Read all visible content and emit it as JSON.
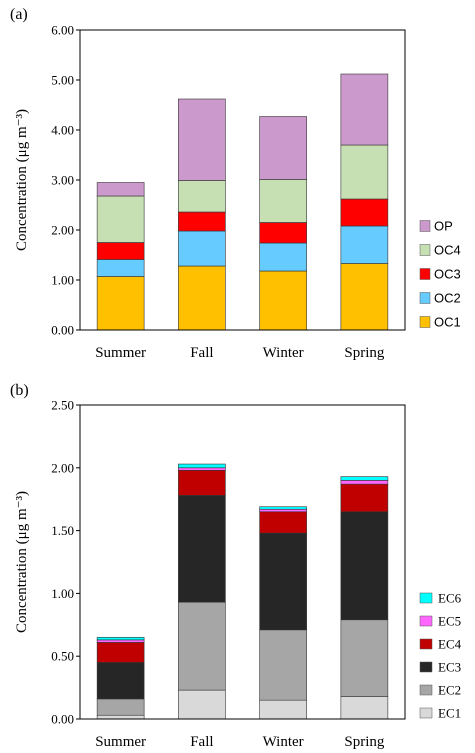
{
  "chart_data": [
    {
      "panel_label": "(a)",
      "type": "bar",
      "stacked": true,
      "ylabel": "Concentration (μg m⁻³)",
      "ylim": [
        0,
        6
      ],
      "yticks": [
        "0.00",
        "1.00",
        "2.00",
        "3.00",
        "4.00",
        "5.00",
        "6.00"
      ],
      "categories": [
        "Summer",
        "Fall",
        "Winter",
        "Spring"
      ],
      "legend_position": "right, stacked from bottom",
      "series": [
        {
          "name": "OC1",
          "color": "#FFC000",
          "values": [
            1.07,
            1.28,
            1.18,
            1.33
          ]
        },
        {
          "name": "OC2",
          "color": "#66CCFF",
          "values": [
            0.34,
            0.7,
            0.56,
            0.75
          ]
        },
        {
          "name": "OC3",
          "color": "#FF0000",
          "values": [
            0.34,
            0.38,
            0.41,
            0.54
          ]
        },
        {
          "name": "OC4",
          "color": "#C6E0B4",
          "values": [
            0.93,
            0.63,
            0.86,
            1.08
          ]
        },
        {
          "name": "OP",
          "color": "#CC99CC",
          "values": [
            0.27,
            1.63,
            1.26,
            1.42
          ]
        }
      ]
    },
    {
      "panel_label": "(b)",
      "type": "bar",
      "stacked": true,
      "ylabel": "Concentration (μg m⁻³)",
      "ylim": [
        0,
        2.5
      ],
      "yticks": [
        "0.00",
        "0.50",
        "1.00",
        "1.50",
        "2.00",
        "2.50"
      ],
      "categories": [
        "Summer",
        "Fall",
        "Winter",
        "Spring"
      ],
      "legend_position": "right, stacked from bottom",
      "series": [
        {
          "name": "EC1",
          "color": "#D9D9D9",
          "values": [
            0.03,
            0.23,
            0.15,
            0.18
          ]
        },
        {
          "name": "EC2",
          "color": "#A6A6A6",
          "values": [
            0.13,
            0.7,
            0.56,
            0.61
          ]
        },
        {
          "name": "EC3",
          "color": "#262626",
          "values": [
            0.29,
            0.85,
            0.77,
            0.86
          ]
        },
        {
          "name": "EC4",
          "color": "#C00000",
          "values": [
            0.16,
            0.2,
            0.17,
            0.22
          ]
        },
        {
          "name": "EC5",
          "color": "#FF66FF",
          "values": [
            0.02,
            0.02,
            0.02,
            0.03
          ]
        },
        {
          "name": "EC6",
          "color": "#00FFFF",
          "values": [
            0.02,
            0.03,
            0.02,
            0.03
          ]
        }
      ]
    }
  ]
}
